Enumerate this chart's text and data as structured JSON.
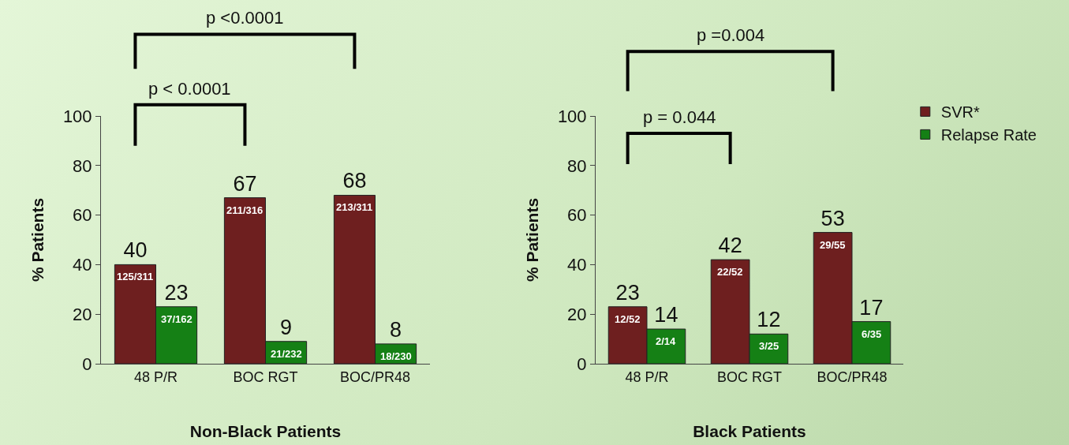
{
  "chart_data": [
    {
      "type": "bar",
      "xlabel": "Non-Black Patients",
      "ylabel": "% Patients",
      "categories": [
        "48 P/R",
        "BOC RGT",
        "BOC/PR48"
      ],
      "series": [
        {
          "color": "#6e1f1f",
          "values": [
            40,
            67,
            68
          ]
        },
        {
          "color": "#158015",
          "values": [
            23,
            9,
            8
          ]
        }
      ],
      "ylim": [
        0,
        100
      ],
      "yticks": [
        0,
        20,
        40,
        60,
        80,
        100
      ],
      "grid": false,
      "legend": false,
      "data_labels": true,
      "annotations": [
        "p <0.0001",
        "p < 0.0001",
        {
          "text": "125/311",
          "x": "48 P/R",
          "y": 40
        },
        {
          "text": "211/316",
          "x": "BOC RGT",
          "y": 67
        },
        {
          "text": "213/311",
          "x": "BOC/PR48",
          "y": 68
        },
        {
          "text": "37/162",
          "x": "48 P/R",
          "y": 23
        },
        {
          "text": "21/232",
          "x": "BOC RGT",
          "y": 9
        },
        {
          "text": "18/230",
          "x": "BOC/PR48",
          "y": 8
        }
      ]
    },
    {
      "type": "bar",
      "xlabel": "Black Patients",
      "ylabel": "% Patients",
      "categories": [
        "48 P/R",
        "BOC RGT",
        "BOC/PR48"
      ],
      "series": [
        {
          "name": "SVR*",
          "color": "#6e1f1f",
          "values": [
            23,
            42,
            53
          ]
        },
        {
          "name": "Relapse Rate",
          "color": "#158015",
          "values": [
            14,
            12,
            17
          ]
        }
      ],
      "ylim": [
        0,
        100
      ],
      "yticks": [
        0,
        20,
        40,
        60,
        80,
        100
      ],
      "grid": false,
      "legend": "top right",
      "data_labels": true,
      "annotations": [
        "p =0.004",
        "p = 0.044",
        {
          "text": "12/52",
          "x": "48 P/R",
          "y": 23
        },
        {
          "text": "22/52",
          "x": "BOC RGT",
          "y": 42
        },
        {
          "text": "29/55",
          "x": "BOC/PR48",
          "y": 53
        },
        {
          "text": "2/14",
          "x": "48 P/R",
          "y": 14
        },
        {
          "text": "3/25",
          "x": "BOC RGT",
          "y": 12
        },
        {
          "text": "6/35",
          "x": "BOC/PR48",
          "y": 17
        }
      ]
    }
  ]
}
